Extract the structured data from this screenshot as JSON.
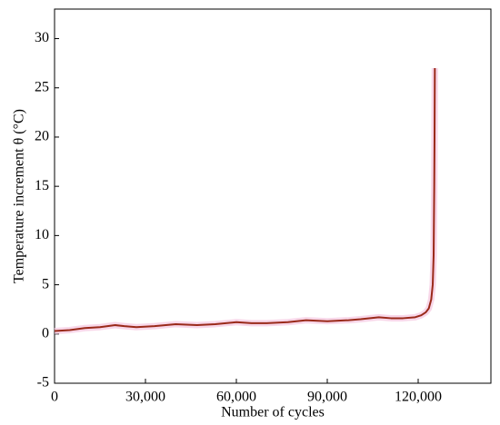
{
  "chart_data": {
    "type": "line",
    "x_label": "Number of cycles",
    "y_label": "Temperature increment  θ (°C)",
    "x": [
      0,
      5000,
      10000,
      15000,
      20000,
      23000,
      27000,
      33000,
      40000,
      47000,
      53000,
      60000,
      65000,
      70000,
      77000,
      83000,
      90000,
      97000,
      101000,
      107000,
      111000,
      115000,
      119000,
      121000,
      122500,
      123500,
      124300,
      124800,
      125100,
      125300,
      125400,
      125500
    ],
    "series": [
      {
        "name": "Temperature increment",
        "color": "#9a2a1a",
        "values": [
          0.3,
          0.4,
          0.6,
          0.7,
          0.9,
          0.8,
          0.7,
          0.8,
          1.0,
          0.9,
          1.0,
          1.2,
          1.1,
          1.1,
          1.2,
          1.4,
          1.3,
          1.4,
          1.5,
          1.7,
          1.6,
          1.6,
          1.7,
          1.9,
          2.2,
          2.6,
          3.5,
          5.0,
          8.0,
          15.0,
          20.0,
          27.0
        ]
      }
    ],
    "xlim": [
      0,
      144000
    ],
    "ylim": [
      -5,
      33
    ],
    "xticks": [
      {
        "value": 0,
        "label": "0"
      },
      {
        "value": 30000,
        "label": "30,000"
      },
      {
        "value": 60000,
        "label": "60,000"
      },
      {
        "value": 90000,
        "label": "90,000"
      },
      {
        "value": 120000,
        "label": "120,000"
      }
    ],
    "yticks": [
      -5,
      0,
      5,
      10,
      15,
      20,
      25,
      30
    ],
    "grid": false
  }
}
